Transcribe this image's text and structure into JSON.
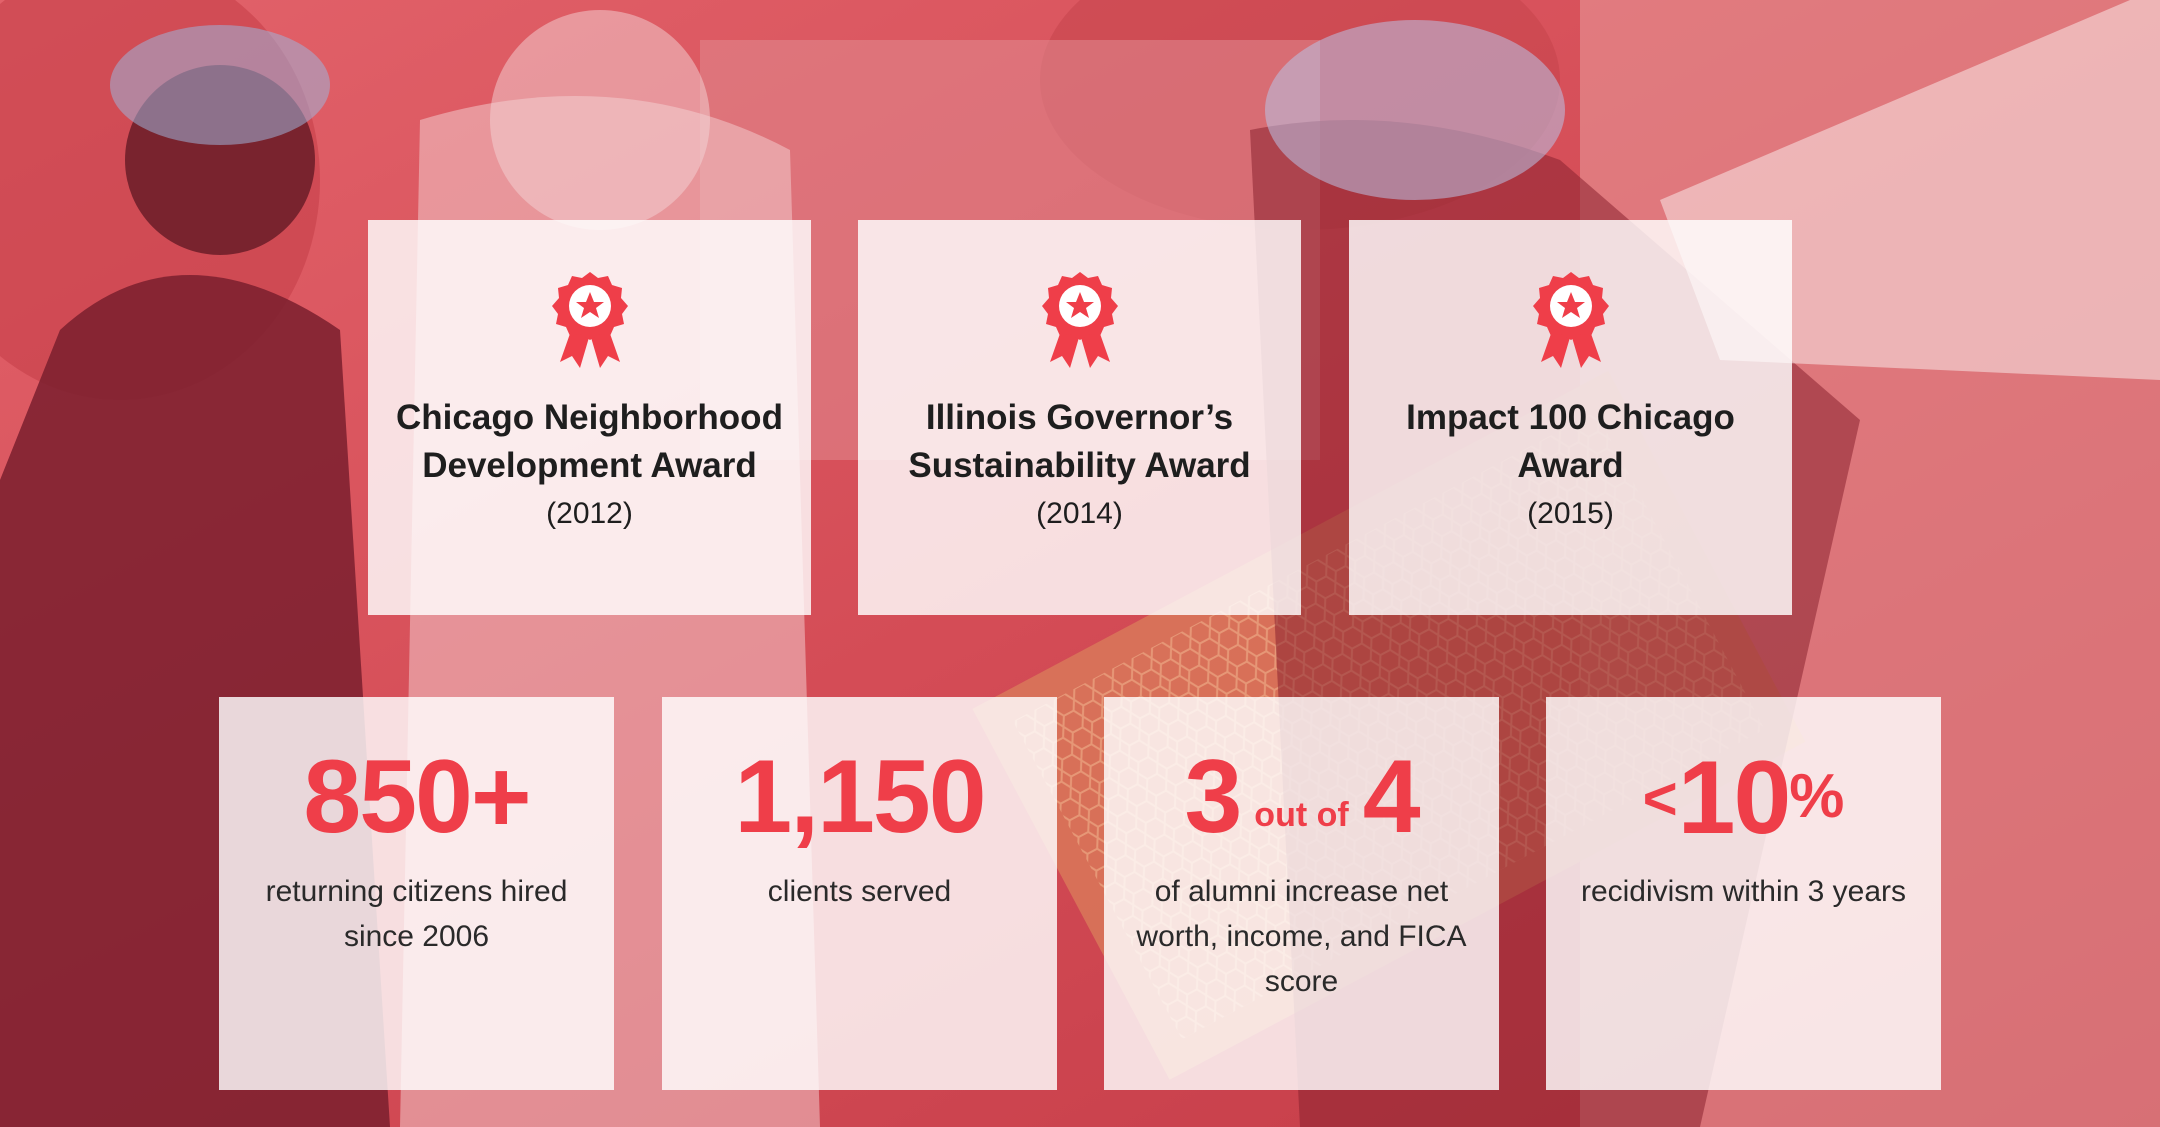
{
  "awards": [
    {
      "title": "Chicago Neighborhood Development Award",
      "year": "(2012)"
    },
    {
      "title": "Illinois Governor’s Sustainability Award",
      "year": "(2014)"
    },
    {
      "title": "Impact 100 Chicago Award",
      "year": "(2015)"
    }
  ],
  "stats": [
    {
      "value": "850+",
      "description": "returning citizens hired since 2006"
    },
    {
      "value": "1,150",
      "description": "clients served"
    },
    {
      "value_left": "3",
      "value_mid": "out of",
      "value_right": "4",
      "description": "of alumni increase net worth, income, and FICA score"
    },
    {
      "value_prefix": "<",
      "value": "10",
      "value_suffix": "%",
      "description": "recidivism within 3 years"
    }
  ],
  "icons": {
    "award": "award-ribbon-icon"
  },
  "colors": {
    "accent": "#ef3e49",
    "overlay": "#d84a52",
    "card": "#ffffff"
  }
}
